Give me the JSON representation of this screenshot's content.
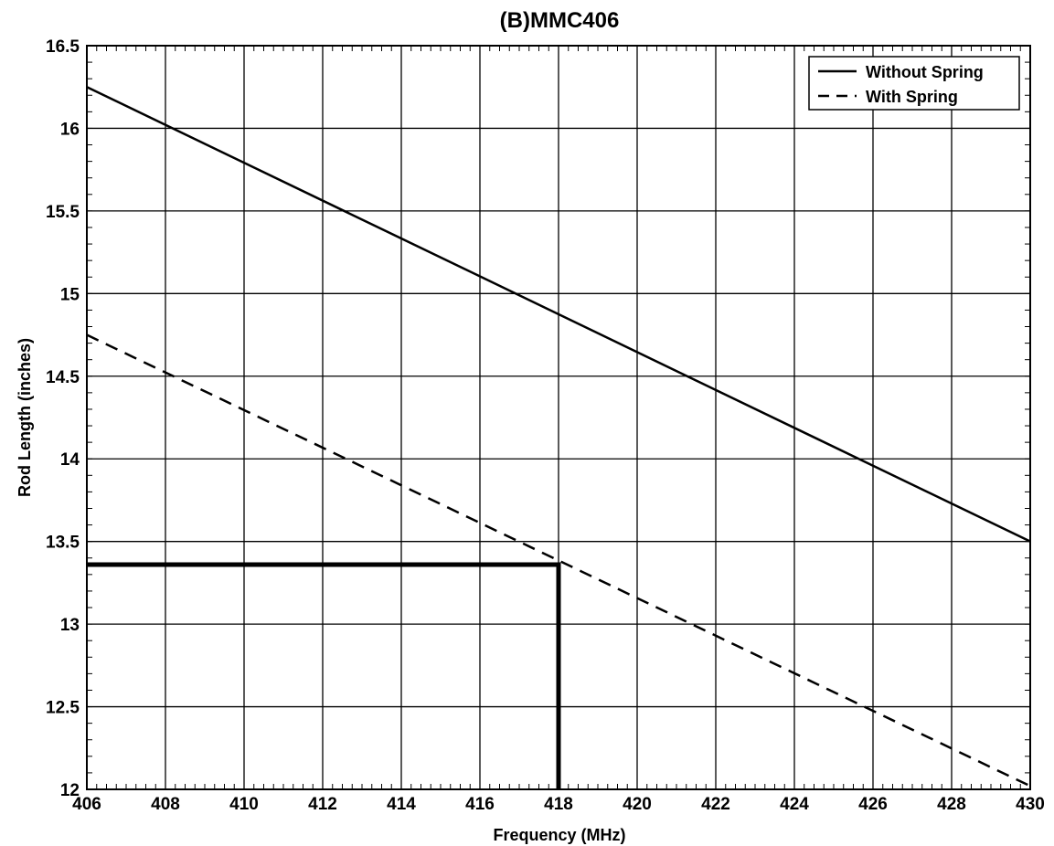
{
  "chart_data": {
    "type": "line",
    "title": "(B)MMC406",
    "xlabel": "Frequency (MHz)",
    "ylabel": "Rod Length (inches)",
    "xlim": [
      406,
      430
    ],
    "ylim": [
      12,
      16.5
    ],
    "x_ticks": [
      "406",
      "408",
      "410",
      "412",
      "414",
      "416",
      "418",
      "420",
      "422",
      "424",
      "426",
      "428",
      "430"
    ],
    "y_ticks": [
      "12",
      "12.5",
      "13",
      "13.5",
      "14",
      "14.5",
      "15",
      "15.5",
      "16",
      "16.5"
    ],
    "grid": true,
    "legend_position": "top-right",
    "series": [
      {
        "name": "Without Spring",
        "style": "solid",
        "x": [
          406,
          430
        ],
        "y": [
          16.25,
          13.5
        ]
      },
      {
        "name": "With Spring",
        "style": "dashed",
        "x": [
          406,
          430
        ],
        "y": [
          14.75,
          12.02
        ]
      }
    ],
    "marker": {
      "style": "solid-thick",
      "x": [
        406,
        418,
        418
      ],
      "y": [
        13.36,
        13.36,
        12
      ]
    },
    "colors": {
      "line": "#000000",
      "grid": "#000000",
      "background": "#ffffff"
    }
  }
}
